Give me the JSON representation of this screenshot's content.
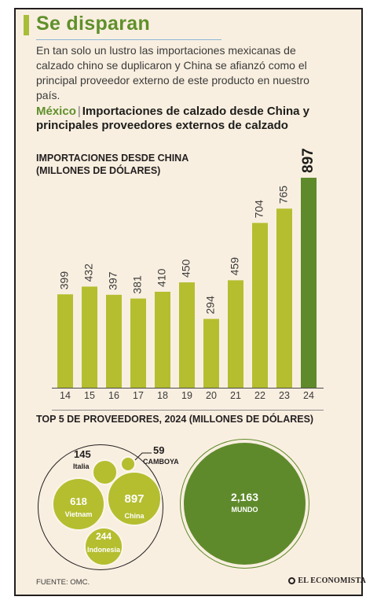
{
  "header": {
    "title": "Se disparan",
    "intro": "En tan solo un lustro las importaciones mexicanas de calzado chino se duplicaron y China se afianzó como el principal proveedor externo de este producto en nuestro país."
  },
  "chart_data": [
    {
      "type": "bar",
      "country": "México",
      "title": "Importaciones de calzado desde China y principales proveedores externos de calzado",
      "ylabel": "IMPORTACIONES DESDE CHINA (MILLONES DE DÓLARES)",
      "xlabel": "",
      "categories": [
        "14",
        "15",
        "16",
        "17",
        "18",
        "19",
        "20",
        "21",
        "22",
        "23",
        "24"
      ],
      "values": [
        399,
        432,
        397,
        381,
        410,
        450,
        294,
        459,
        704,
        765,
        897
      ],
      "value_labels": [
        "399",
        "432",
        "397",
        "381",
        "410",
        "450",
        "294",
        "459",
        "704",
        "765",
        "897"
      ],
      "ylim": [
        0,
        897
      ],
      "grid": false,
      "colors": {
        "default": "#b5be2f",
        "highlight": "#5f8a2b"
      },
      "highlight_index": 10
    },
    {
      "type": "bubble",
      "title": "TOP 5 DE PROVEEDORES, 2024 (MILLONES DE DÓLARES)",
      "items": [
        {
          "name": "China",
          "value": 897,
          "label": "897"
        },
        {
          "name": "Vietnam",
          "value": 618,
          "label": "618"
        },
        {
          "name": "Indonesia",
          "value": 244,
          "label": "244"
        },
        {
          "name": "Italia",
          "value": 145,
          "label": "145"
        },
        {
          "name": "CAMBOYA",
          "value": 59,
          "label": "59"
        }
      ],
      "total": {
        "name": "MUNDO",
        "value": 2163,
        "label": "2,163"
      },
      "colors": {
        "suppliers": "#b5be2f",
        "total": "#5f8a2b"
      }
    }
  ],
  "footer": {
    "source": "FUENTE: OMC.",
    "logo": "EL ECONOMISTA"
  }
}
